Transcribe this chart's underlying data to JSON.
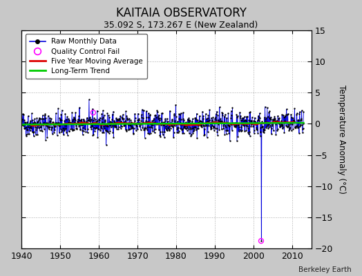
{
  "title": "KAITAIA OBSERVATORY",
  "subtitle": "35.092 S, 173.267 E (New Zealand)",
  "ylabel": "Temperature Anomaly (°C)",
  "credit": "Berkeley Earth",
  "xlim": [
    1940,
    2015
  ],
  "ylim": [
    -20,
    15
  ],
  "yticks": [
    -20,
    -15,
    -10,
    -5,
    0,
    5,
    10,
    15
  ],
  "xticks": [
    1940,
    1950,
    1960,
    1970,
    1980,
    1990,
    2000,
    2010
  ],
  "year_start": 1940,
  "year_end": 2013,
  "seed": 42,
  "outlier_year": 2002.0,
  "outlier_value": -18.8,
  "qc_year2": 1958.5,
  "qc_value2": 1.8,
  "bg_color": "#c8c8c8",
  "plot_bg_color": "#ffffff",
  "raw_line_color": "#0000dd",
  "raw_dot_color": "#000000",
  "qc_fail_color": "#ff00ff",
  "moving_avg_color": "#dd0000",
  "trend_color": "#00cc00",
  "legend_bg": "#ffffff",
  "noise_std": 1.0,
  "trend_slope": 0.003
}
